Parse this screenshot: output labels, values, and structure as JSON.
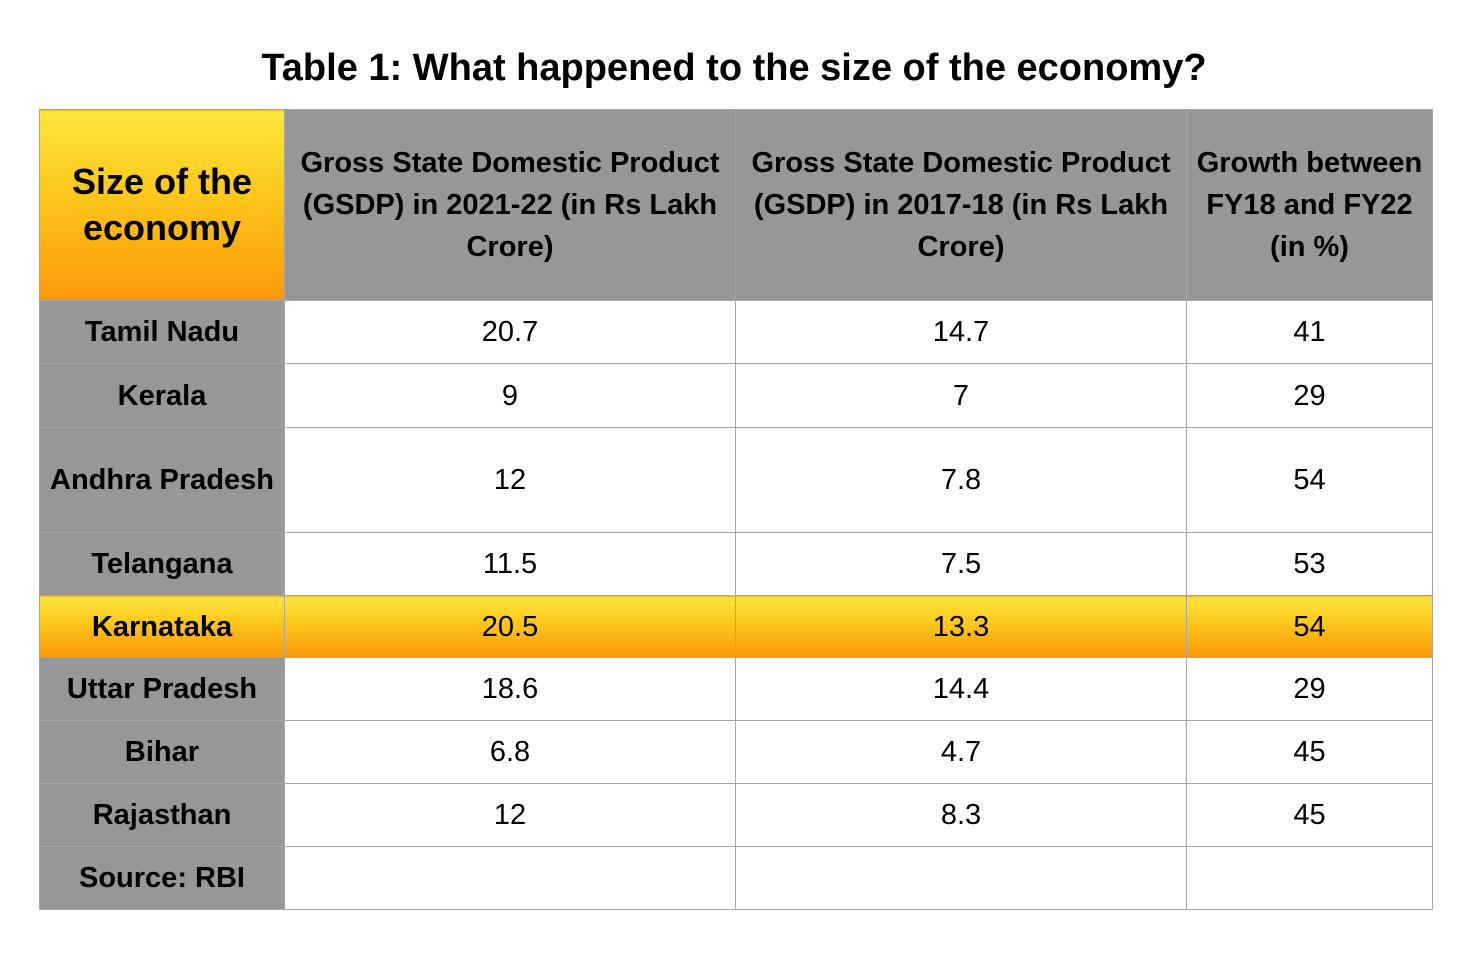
{
  "chart_data": {
    "type": "table",
    "title": "Table 1: What happened to the size of the economy?",
    "columns": [
      "Size of the economy",
      "Gross State Domestic Product (GSDP)  in 2021-22 (in Rs Lakh Crore)",
      "Gross State Domestic Product (GSDP)  in 2017-18 (in Rs Lakh Crore)",
      "Growth between FY18 and FY22 (in %)"
    ],
    "rows": [
      [
        "Tamil Nadu",
        "20.7",
        "14.7",
        "41"
      ],
      [
        "Kerala",
        "9",
        "7",
        "29"
      ],
      [
        "Andhra Pradesh",
        "12",
        "7.8",
        "54"
      ],
      [
        "Telangana",
        "11.5",
        "7.5",
        "53"
      ],
      [
        "Karnataka",
        "20.5",
        "13.3",
        "54"
      ],
      [
        "Uttar Pradesh",
        "18.6",
        "14.4",
        "29"
      ],
      [
        "Bihar",
        "6.8",
        "4.7",
        "45"
      ],
      [
        "Rajasthan",
        "12",
        "8.3",
        "45"
      ],
      [
        "Source: RBI",
        "",
        "",
        ""
      ]
    ],
    "highlight_row": "Karnataka",
    "colors": {
      "header_gray": "#979797",
      "highlight_top": "#fde63a",
      "highlight_bottom": "#fb9808",
      "border": "#a6a6a6"
    }
  }
}
